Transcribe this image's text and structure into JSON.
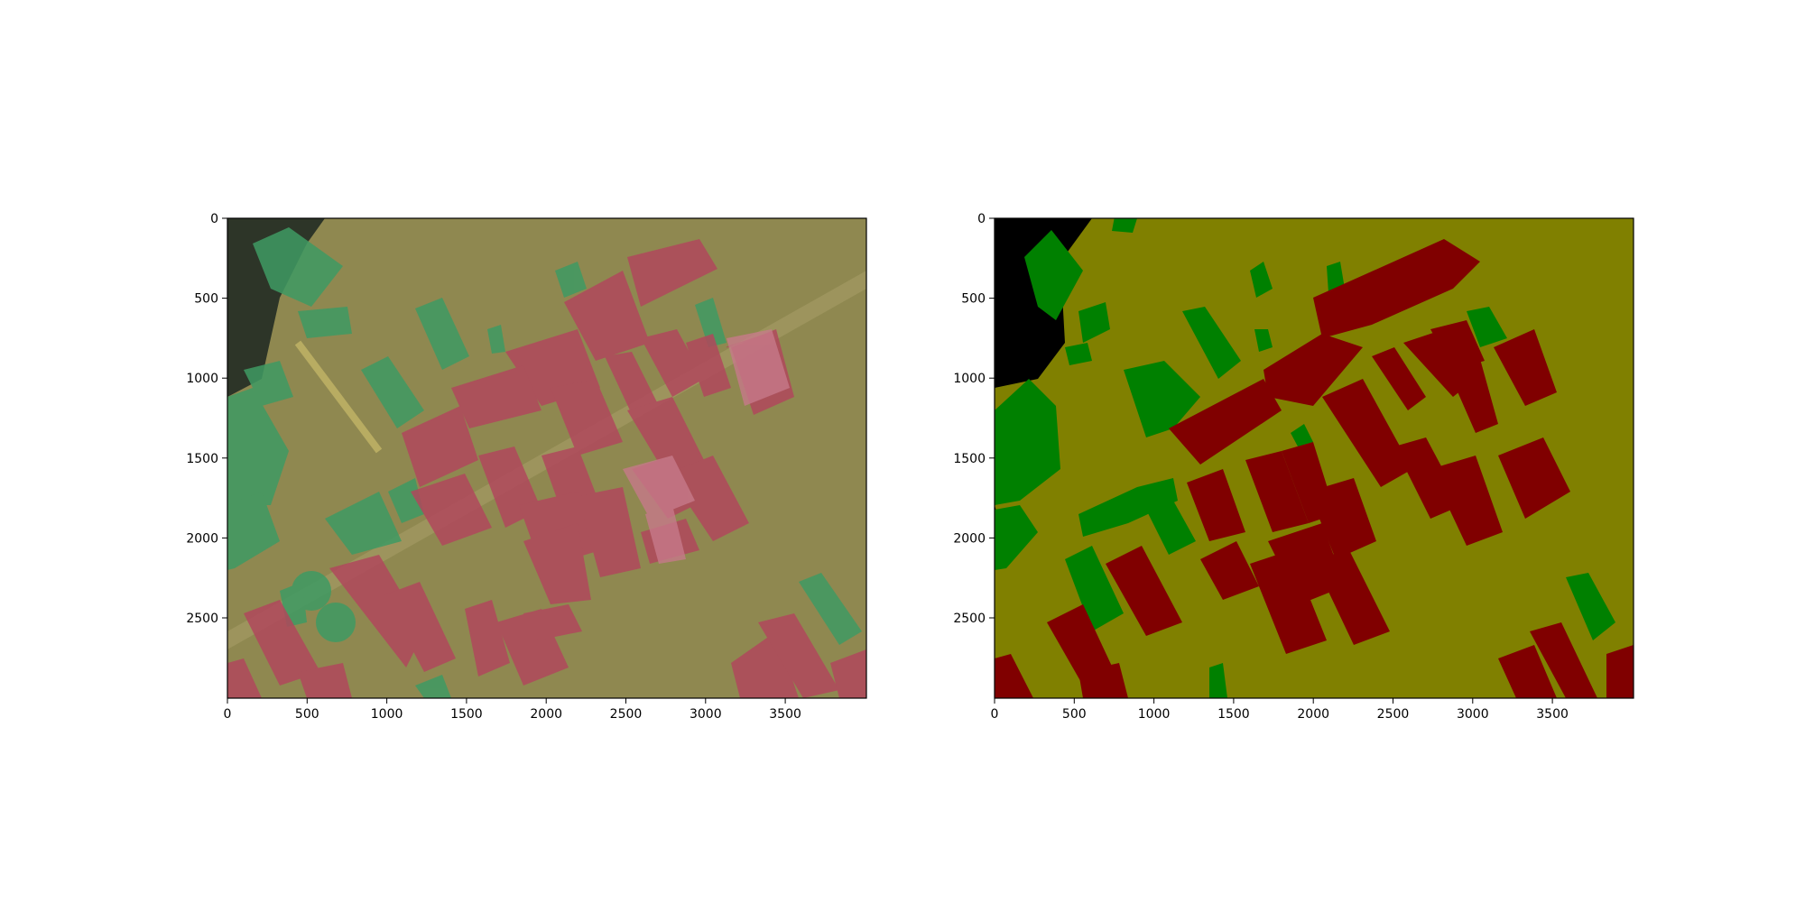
{
  "figure": {
    "panels": [
      {
        "name": "overlay",
        "image": "aerial-photo-with-class-overlay",
        "xticks": [
          "0",
          "500",
          "1000",
          "1500",
          "2000",
          "2500",
          "3000",
          "3500"
        ],
        "yticks": [
          "0",
          "500",
          "1000",
          "1500",
          "2000",
          "2500"
        ]
      },
      {
        "name": "mask",
        "image": "segmentation-label-mask",
        "xticks": [
          "0",
          "500",
          "1000",
          "1500",
          "2000",
          "2500",
          "3000",
          "3500"
        ],
        "yticks": [
          "0",
          "500",
          "1000",
          "1500",
          "2000",
          "2500"
        ]
      }
    ]
  },
  "colors": {
    "background_class": "#808000",
    "building_class": "#800000",
    "vegetation_class": "#008000",
    "void_class": "#000000"
  }
}
